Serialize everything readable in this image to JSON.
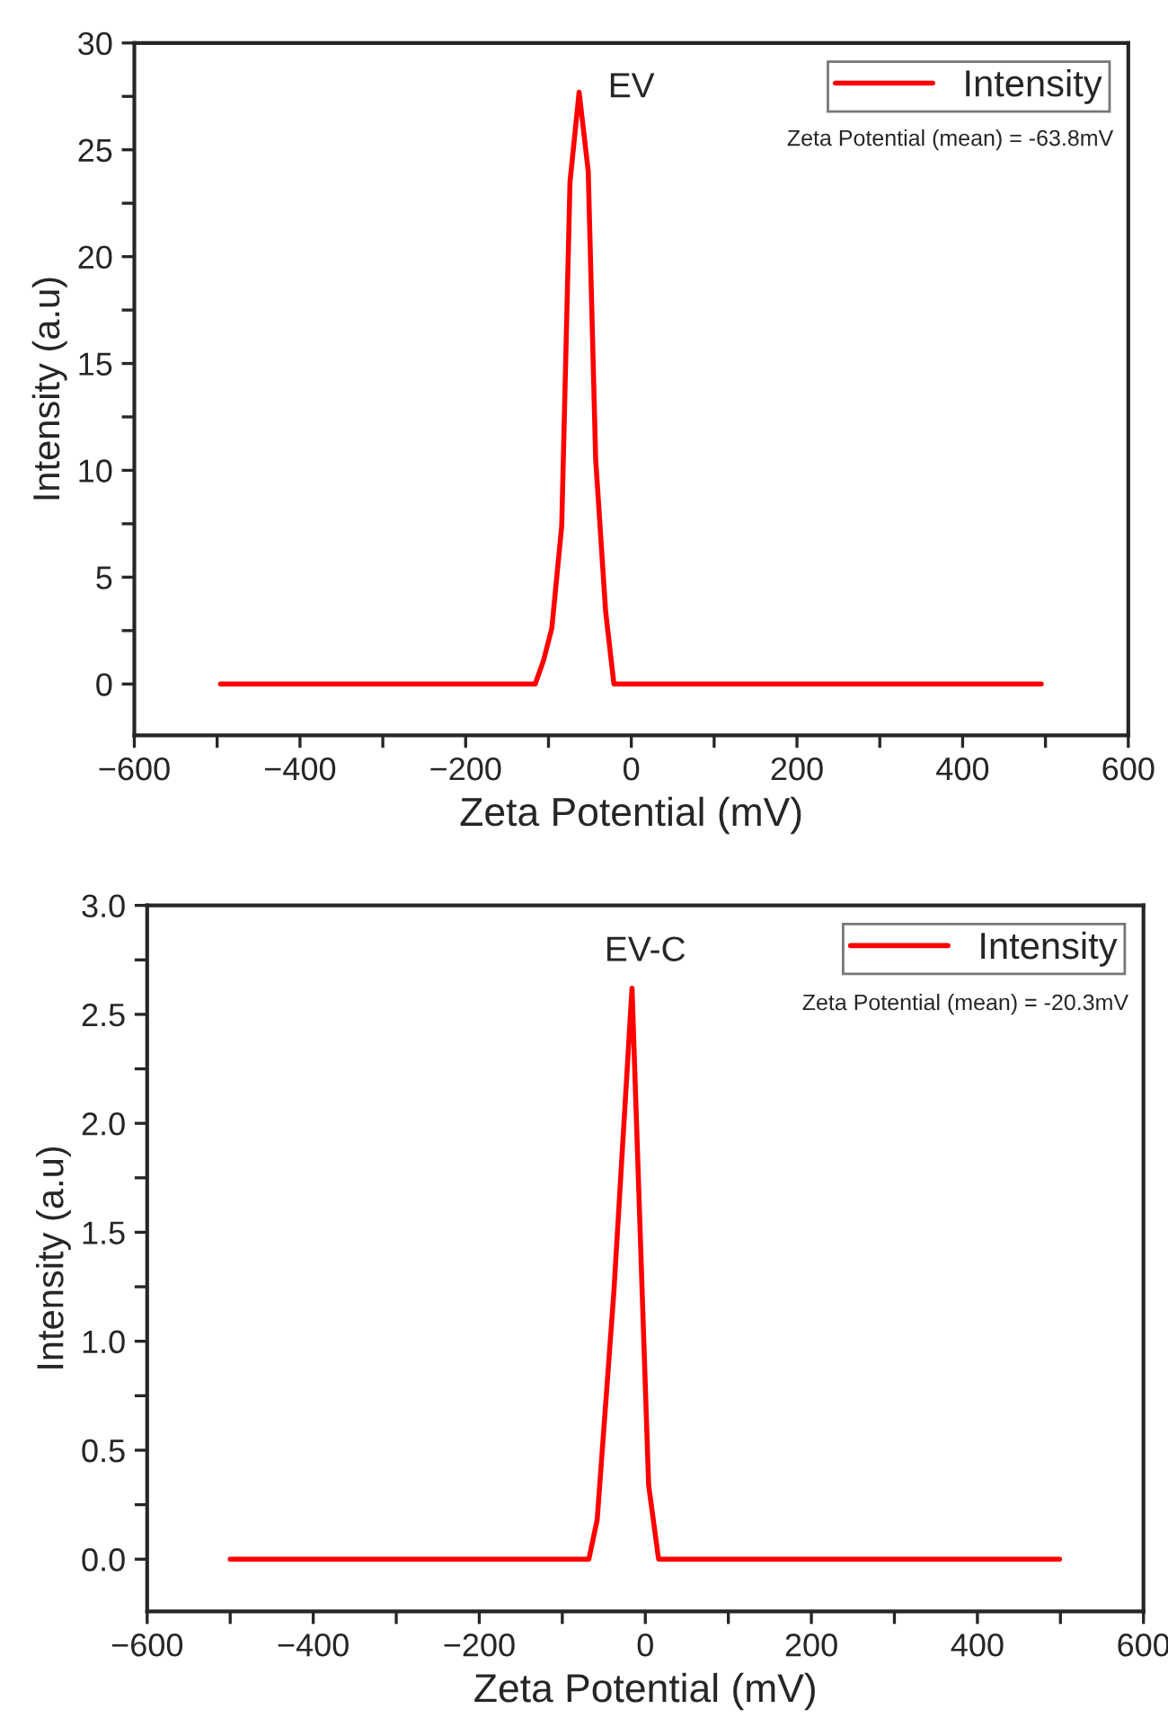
{
  "chart_data": [
    {
      "type": "line",
      "title": "EV",
      "xlabel": "Zeta Potential (mV)",
      "ylabel": "Intensity (a.u)",
      "annotations": [
        "Zeta Potential (mean) = -63.8mV"
      ],
      "legend": "top right",
      "series": [
        {
          "name": "Intensity",
          "color": "#ff0000",
          "x": [
            -496,
            -116,
            -106,
            -96,
            -84,
            -74,
            -63,
            -52,
            -43,
            -31,
            -21,
            495
          ],
          "values": [
            0,
            0,
            1.1,
            2.6,
            7.4,
            23.5,
            27.7,
            24.0,
            10.5,
            3.4,
            0,
            0
          ]
        }
      ],
      "xlim": [
        -600,
        600
      ],
      "xticks": [
        {
          "value": -600,
          "label": "−600"
        },
        {
          "value": -500,
          "label": null
        },
        {
          "value": -400,
          "label": "−400"
        },
        {
          "value": -300,
          "label": null
        },
        {
          "value": -200,
          "label": "−200"
        },
        {
          "value": -100,
          "label": null
        },
        0,
        {
          "value": 100,
          "label": null
        },
        200,
        {
          "value": 300,
          "label": null
        },
        400,
        {
          "value": 500,
          "label": null
        },
        600
      ],
      "ylim": [
        -2.4,
        30
      ],
      "yticks": [
        0,
        {
          "value": 2.5,
          "label": null
        },
        5,
        {
          "value": 7.5,
          "label": null
        },
        10,
        {
          "value": 12.5,
          "label": null
        },
        15,
        {
          "value": 17.5,
          "label": null
        },
        20,
        {
          "value": 22.5,
          "label": null
        },
        25,
        {
          "value": 27.5,
          "label": null
        },
        30
      ]
    },
    {
      "type": "line",
      "title": "EV-C",
      "xlabel": "Zeta Potential (mV)",
      "ylabel": "Intensity (a.u)",
      "annotations": [
        "Zeta Potential (mean) = -20.3mV"
      ],
      "legend": "top right",
      "series": [
        {
          "name": "Intensity",
          "color": "#ff0000",
          "x": [
            -500,
            -68,
            -58,
            -38,
            -16,
            -4,
            4,
            16,
            499
          ],
          "values": [
            0,
            0,
            0.18,
            1.22,
            2.62,
            1.25,
            0.34,
            0,
            0
          ]
        }
      ],
      "xlim": [
        -600,
        600
      ],
      "xticks": [
        {
          "value": -600,
          "label": "−600"
        },
        {
          "value": -500,
          "label": null
        },
        {
          "value": -400,
          "label": "−400"
        },
        {
          "value": -300,
          "label": null
        },
        {
          "value": -200,
          "label": "−200"
        },
        {
          "value": -100,
          "label": null
        },
        0,
        {
          "value": 100,
          "label": null
        },
        200,
        {
          "value": 300,
          "label": null
        },
        400,
        {
          "value": 500,
          "label": null
        },
        600
      ],
      "ylim": [
        -0.24,
        3.0
      ],
      "yticks": [
        {
          "value": 0,
          "label": "0.0"
        },
        {
          "value": 0.25,
          "label": null
        },
        {
          "value": 0.5,
          "label": "0.5"
        },
        {
          "value": 0.75,
          "label": null
        },
        {
          "value": 1.0,
          "label": "1.0"
        },
        {
          "value": 1.25,
          "label": null
        },
        {
          "value": 1.5,
          "label": "1.5"
        },
        {
          "value": 1.75,
          "label": null
        },
        {
          "value": 2.0,
          "label": "2.0"
        },
        {
          "value": 2.25,
          "label": null
        },
        {
          "value": 2.5,
          "label": "2.5"
        },
        {
          "value": 2.75,
          "label": null
        },
        {
          "value": 3.0,
          "label": "3.0"
        }
      ]
    }
  ]
}
